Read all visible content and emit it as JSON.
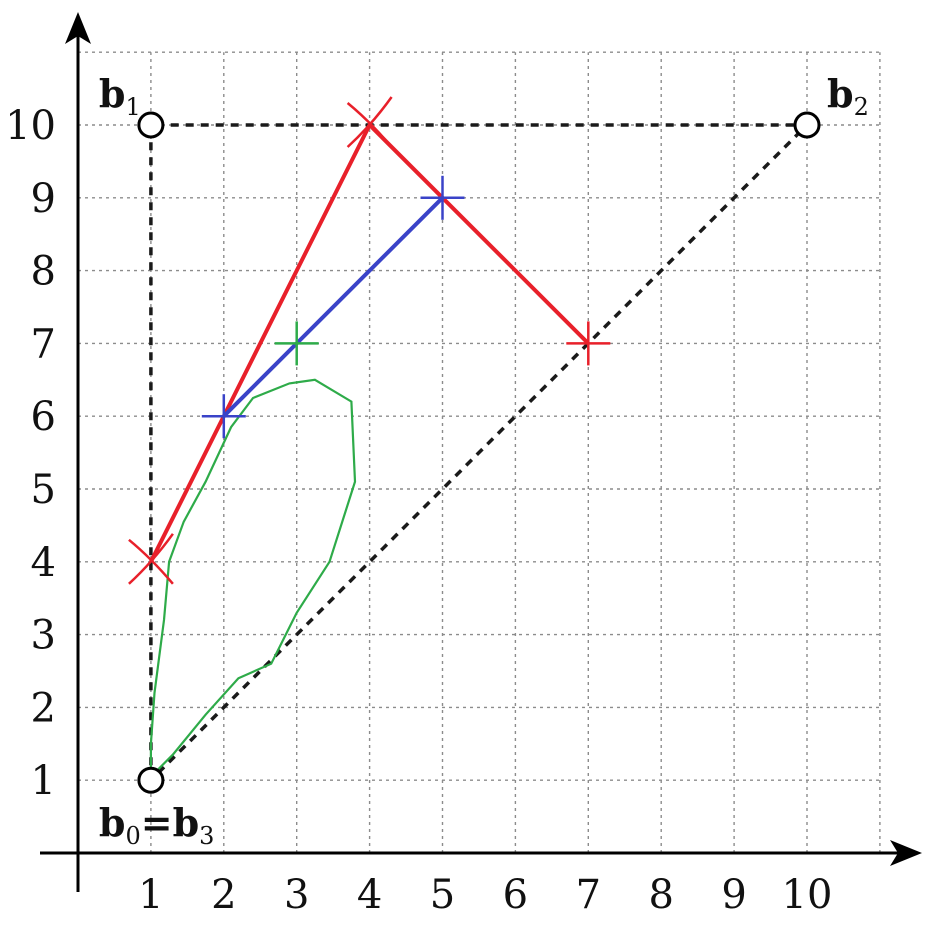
{
  "chart_data": {
    "type": "diagram",
    "x_ticks": [
      "1",
      "2",
      "3",
      "4",
      "5",
      "6",
      "7",
      "8",
      "9",
      "10"
    ],
    "y_ticks": [
      "1",
      "2",
      "3",
      "4",
      "5",
      "6",
      "7",
      "8",
      "9",
      "10"
    ],
    "xlim": [
      0,
      10
    ],
    "ylim": [
      0,
      10
    ],
    "grid": true,
    "control_points": [
      {
        "id": "b1",
        "x": 1,
        "y": 10
      },
      {
        "id": "b2",
        "x": 10,
        "y": 10
      },
      {
        "id": "b03",
        "x": 1,
        "y": 1
      }
    ],
    "labels": {
      "b1": {
        "main": "b",
        "sub": "1"
      },
      "b2": {
        "main": "b",
        "sub": "2"
      },
      "b03": {
        "main_a": "b",
        "sub_a": "0",
        "eq": "=",
        "main_b": "b",
        "sub_b": "3"
      }
    },
    "control_polygon": [
      [
        1,
        1
      ],
      [
        1,
        10
      ],
      [
        10,
        10
      ],
      [
        1,
        1
      ]
    ],
    "red_polyline": [
      [
        1,
        4
      ],
      [
        4,
        10
      ],
      [
        7,
        7
      ]
    ],
    "blue_segment": [
      [
        2,
        6
      ],
      [
        5,
        9
      ]
    ],
    "green_point": [
      3,
      7
    ],
    "green_curve": [
      [
        1,
        1.05
      ],
      [
        1,
        1.5
      ],
      [
        1.05,
        2.2
      ],
      [
        1.18,
        3.2
      ],
      [
        1.25,
        4.0
      ],
      [
        1.45,
        4.55
      ],
      [
        1.75,
        5.1
      ],
      [
        2.1,
        5.85
      ],
      [
        2.4,
        6.25
      ],
      [
        2.9,
        6.45
      ],
      [
        3.25,
        6.5
      ],
      [
        3.75,
        6.2
      ],
      [
        3.8,
        5.1
      ],
      [
        3.45,
        4.0
      ],
      [
        3.0,
        3.3
      ],
      [
        2.65,
        2.6
      ],
      [
        2.2,
        2.4
      ],
      [
        1.75,
        1.9
      ],
      [
        1.3,
        1.35
      ],
      [
        1.0,
        1.05
      ]
    ],
    "colors": {
      "red": "#e8202a",
      "blue": "#3a43c8",
      "green": "#2eab49",
      "dashed": "#1a1a1a",
      "grid": "#8c8c8c"
    }
  }
}
